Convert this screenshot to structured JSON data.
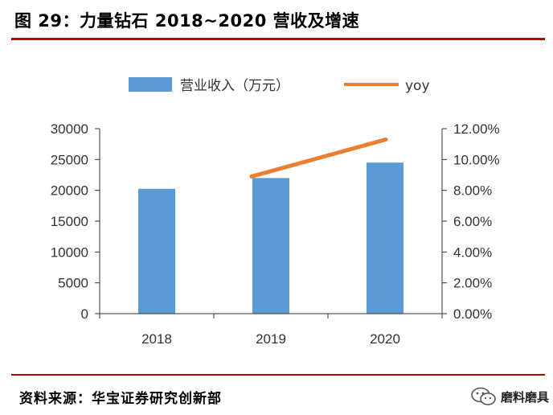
{
  "figure": {
    "title": "图 29：力量钻石 2018~2020 营收及增速",
    "source": "资料来源：华宝证券研究创新部",
    "watermark": "磨料磨具"
  },
  "colors": {
    "bar": "#5b9bd5",
    "line": "#ed7d31",
    "axis": "#333333",
    "rule": "#c00000"
  },
  "chart_data": {
    "type": "bar",
    "categories": [
      "2018",
      "2019",
      "2020"
    ],
    "series": [
      {
        "name": "营业收入（万元）",
        "type": "bar",
        "axis": "left",
        "values": [
          20250,
          22000,
          24500
        ]
      },
      {
        "name": "yoy",
        "type": "line",
        "axis": "right",
        "values": [
          null,
          0.089,
          0.113
        ]
      }
    ],
    "ylim": [
      0,
      30000
    ],
    "yticks": [
      0,
      5000,
      10000,
      15000,
      20000,
      25000,
      30000
    ],
    "ylim_right": [
      0,
      0.12
    ],
    "yticks_right": [
      "0.00%",
      "2.00%",
      "4.00%",
      "6.00%",
      "8.00%",
      "10.00%",
      "12.00%"
    ],
    "legend_position": "top",
    "grid": false
  }
}
